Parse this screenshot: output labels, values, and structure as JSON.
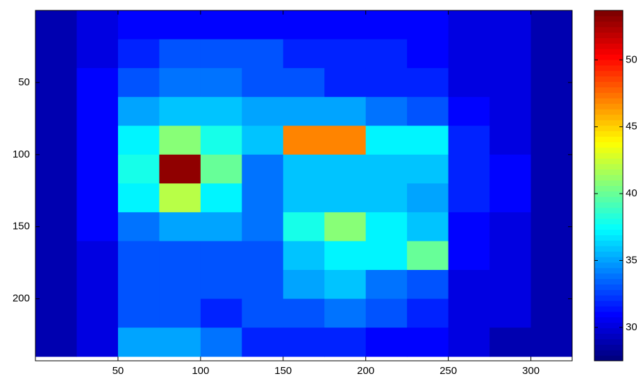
{
  "chart_data": {
    "type": "heatmap",
    "colormap": "jet",
    "x": [
      12.5,
      37.5,
      62.5,
      87.5,
      112.5,
      137.5,
      162.5,
      187.5,
      212.5,
      237.5,
      262.5,
      287.5,
      312.5
    ],
    "y": [
      10,
      30,
      50,
      70,
      90,
      110,
      130,
      150,
      170,
      190,
      210,
      230
    ],
    "values": [
      [
        29,
        30,
        31,
        31,
        31,
        31,
        31,
        31,
        31,
        31,
        30,
        30,
        29
      ],
      [
        29,
        30,
        32,
        33,
        33,
        33,
        32,
        32,
        32,
        31,
        30,
        30,
        29
      ],
      [
        29,
        31,
        33,
        34,
        34,
        33,
        33,
        32,
        32,
        32,
        30,
        30,
        29
      ],
      [
        29,
        31,
        35,
        36,
        36,
        35,
        35,
        35,
        34,
        33,
        31,
        30,
        29
      ],
      [
        29,
        31,
        37,
        41,
        38,
        36,
        47,
        47,
        37,
        37,
        32,
        30,
        29
      ],
      [
        29,
        31,
        38,
        53,
        40,
        34,
        36,
        36,
        36,
        36,
        32,
        31,
        29
      ],
      [
        29,
        31,
        37,
        42,
        37,
        34,
        36,
        36,
        36,
        35,
        32,
        31,
        29
      ],
      [
        29,
        31,
        34,
        35,
        35,
        34,
        38,
        41,
        37,
        36,
        31,
        30,
        29
      ],
      [
        29,
        30,
        33,
        33,
        33,
        33,
        36,
        37,
        37,
        40,
        31,
        30,
        29
      ],
      [
        29,
        30,
        33,
        33,
        33,
        33,
        35,
        36,
        34,
        33,
        30,
        30,
        29
      ],
      [
        29,
        30,
        33,
        33,
        32,
        33,
        33,
        34,
        33,
        32,
        30,
        30,
        29
      ],
      [
        29,
        30,
        35,
        35,
        34,
        32,
        32,
        32,
        31,
        31,
        30,
        29,
        29
      ]
    ],
    "xlim": [
      0,
      325
    ],
    "xticks": [
      50,
      100,
      150,
      200,
      250,
      300
    ],
    "ylim": [
      0,
      243
    ],
    "yticks": [
      50,
      100,
      150,
      200
    ],
    "y_reversed": true,
    "zlim": [
      27.5,
      53.7
    ],
    "zticks": [
      30,
      35,
      40,
      45,
      50
    ]
  }
}
